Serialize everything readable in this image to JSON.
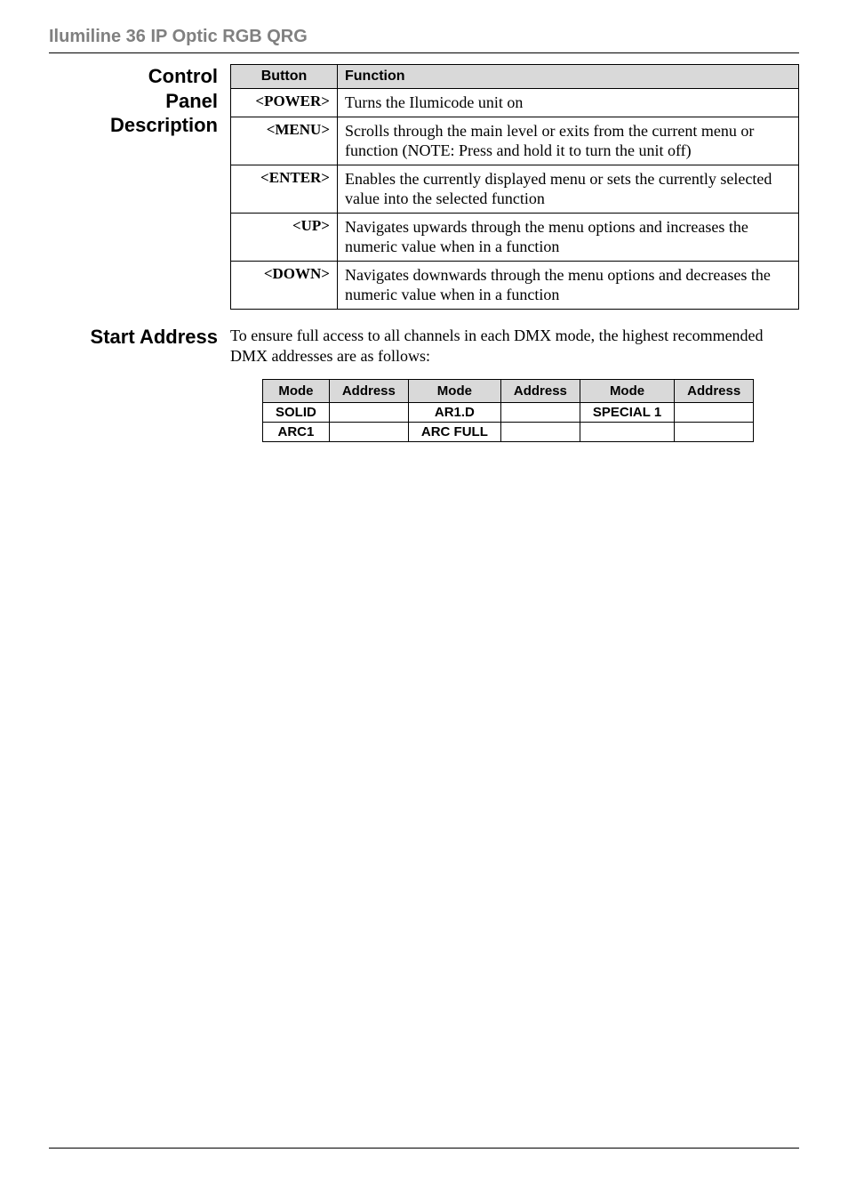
{
  "header": {
    "title": "Ilumiline 36 IP Optic RGB QRG"
  },
  "control_panel": {
    "heading_line1": "Control",
    "heading_line2": "Panel",
    "heading_line3": "Description",
    "col_button": "Button",
    "col_function": "Function",
    "rows": [
      {
        "button": "<POWER>",
        "function": "Turns the Ilumicode unit on"
      },
      {
        "button": "<MENU>",
        "function": "Scrolls through the main level or exits from the current menu or function (NOTE: Press and hold it to turn the unit off)"
      },
      {
        "button": "<ENTER>",
        "function": "Enables the currently displayed menu or sets the currently selected value into the selected function"
      },
      {
        "button": "<UP>",
        "function": "Navigates upwards through the menu options and increases the numeric value when in a function"
      },
      {
        "button": "<DOWN>",
        "function": "Navigates downwards through the menu options and decreases the numeric value when in a function"
      }
    ]
  },
  "start_address": {
    "heading": "Start Address",
    "intro": "To ensure full access to all channels in each DMX mode, the highest recommended DMX addresses are as follows:",
    "col_mode": "Mode",
    "col_address": "Address",
    "cells": {
      "r1c1": "SOLID",
      "r1c2": "",
      "r1c3": "AR1.D",
      "r1c4": "",
      "r1c5": "SPECIAL 1",
      "r1c6": "",
      "r2c1": "ARC1",
      "r2c2": "",
      "r2c3": "ARC FULL",
      "r2c4": "",
      "r2c5": "",
      "r2c6": ""
    }
  },
  "colors": {
    "header_gray": "#808080",
    "table_header_bg": "#d9d9d9",
    "border": "#000000",
    "background": "#ffffff",
    "text": "#000000"
  },
  "typography": {
    "header_title_pt": 15,
    "side_heading_pt": 16,
    "table_body_pt": 13,
    "serif_body_pt": 13,
    "addr_table_pt": 11
  }
}
